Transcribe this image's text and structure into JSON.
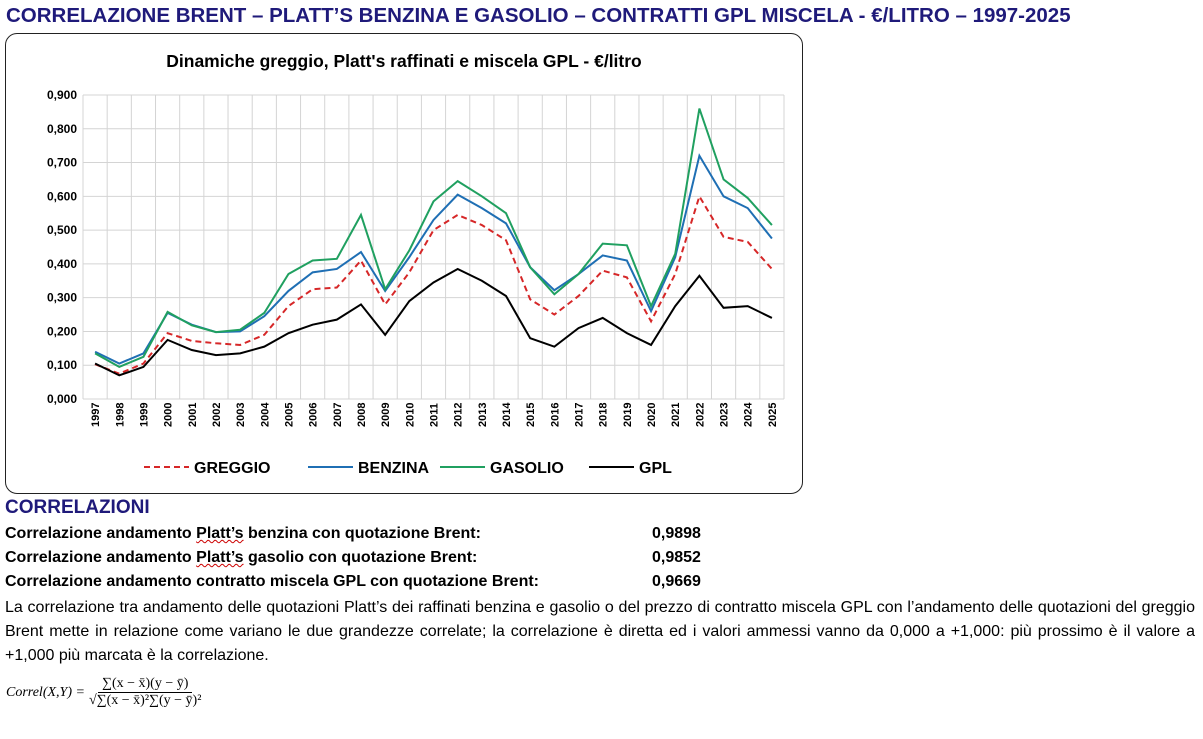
{
  "title": "CORRELAZIONE BRENT – PLATT’S BENZINA E GASOLIO – CONTRATTI GPL MISCELA - €/LITRO – 1997-2025",
  "chart_data": {
    "type": "line",
    "title": "Dinamiche greggio, Platt's raffinati e miscela GPL - €/litro",
    "xlabel": "",
    "ylabel": "",
    "ylim": [
      0,
      0.9
    ],
    "yticks": [
      "0,000",
      "0,100",
      "0,200",
      "0,300",
      "0,400",
      "0,500",
      "0,600",
      "0,700",
      "0,800",
      "0,900"
    ],
    "grid": true,
    "legend": "bottom",
    "categories": [
      "1997",
      "1998",
      "1999",
      "2000",
      "2001",
      "2002",
      "2003",
      "2004",
      "2005",
      "2006",
      "2007",
      "2008",
      "2009",
      "2010",
      "2011",
      "2012",
      "2013",
      "2014",
      "2015",
      "2016",
      "2017",
      "2018",
      "2019",
      "2020",
      "2021",
      "2022",
      "2023",
      "2024",
      "2025"
    ],
    "series": [
      {
        "name": "GREGGIO",
        "color": "#d62728",
        "dashed": true,
        "values": [
          0.103,
          0.075,
          0.105,
          0.195,
          0.172,
          0.165,
          0.16,
          0.19,
          0.275,
          0.325,
          0.33,
          0.41,
          0.28,
          0.375,
          0.5,
          0.545,
          0.515,
          0.47,
          0.295,
          0.25,
          0.305,
          0.38,
          0.36,
          0.23,
          0.37,
          0.6,
          0.48,
          0.465,
          0.385
        ]
      },
      {
        "name": "BENZINA",
        "color": "#1f6fb4",
        "dashed": false,
        "values": [
          0.14,
          0.105,
          0.135,
          0.255,
          0.22,
          0.198,
          0.2,
          0.245,
          0.32,
          0.375,
          0.385,
          0.435,
          0.32,
          0.42,
          0.53,
          0.605,
          0.565,
          0.52,
          0.39,
          0.322,
          0.37,
          0.425,
          0.41,
          0.26,
          0.42,
          0.72,
          0.6,
          0.565,
          0.475
        ]
      },
      {
        "name": "GASOLIO",
        "color": "#20a060",
        "dashed": false,
        "values": [
          0.135,
          0.095,
          0.125,
          0.258,
          0.218,
          0.198,
          0.205,
          0.255,
          0.37,
          0.41,
          0.415,
          0.545,
          0.325,
          0.44,
          0.585,
          0.645,
          0.6,
          0.55,
          0.39,
          0.31,
          0.37,
          0.46,
          0.455,
          0.275,
          0.43,
          0.86,
          0.65,
          0.595,
          0.515
        ]
      },
      {
        "name": "GPL",
        "color": "#000000",
        "dashed": false,
        "values": [
          0.105,
          0.07,
          0.095,
          0.175,
          0.145,
          0.13,
          0.135,
          0.155,
          0.195,
          0.22,
          0.235,
          0.28,
          0.19,
          0.29,
          0.345,
          0.385,
          0.35,
          0.305,
          0.18,
          0.155,
          0.21,
          0.24,
          0.195,
          0.16,
          0.275,
          0.365,
          0.27,
          0.275,
          0.24
        ]
      }
    ]
  },
  "correlazioni": {
    "heading": "CORRELAZIONI",
    "rows": [
      {
        "pre": "Correlazione andamento ",
        "mark": "Platt’s",
        "post": " benzina con quotazione Brent:",
        "value": "0,9898"
      },
      {
        "pre": "Correlazione andamento ",
        "mark": "Platt’s",
        "post": " gasolio con quotazione Brent:",
        "value": "0,9852"
      },
      {
        "pre": "Correlazione andamento contratto miscela GPL con quotazione Brent:",
        "mark": "",
        "post": "",
        "value": "0,9669"
      }
    ],
    "paragraph": "La correlazione tra andamento delle quotazioni Platt’s dei raffinati benzina e gasolio o del prezzo di contratto miscela GPL con l’andamento delle quotazioni del greggio Brent mette in relazione come variano le due grandezze correlate; la correlazione è diretta ed i valori ammessi vanno da 0,000 a +1,000: più prossimo è il valore a +1,000 più marcata è la correlazione.",
    "formula": {
      "lhs": "Correl(X,Y) =",
      "numerator": "∑(x − x̄)(y − ȳ)",
      "denominator": "√∑(x − x̄)²∑(y − ȳ)²"
    }
  }
}
